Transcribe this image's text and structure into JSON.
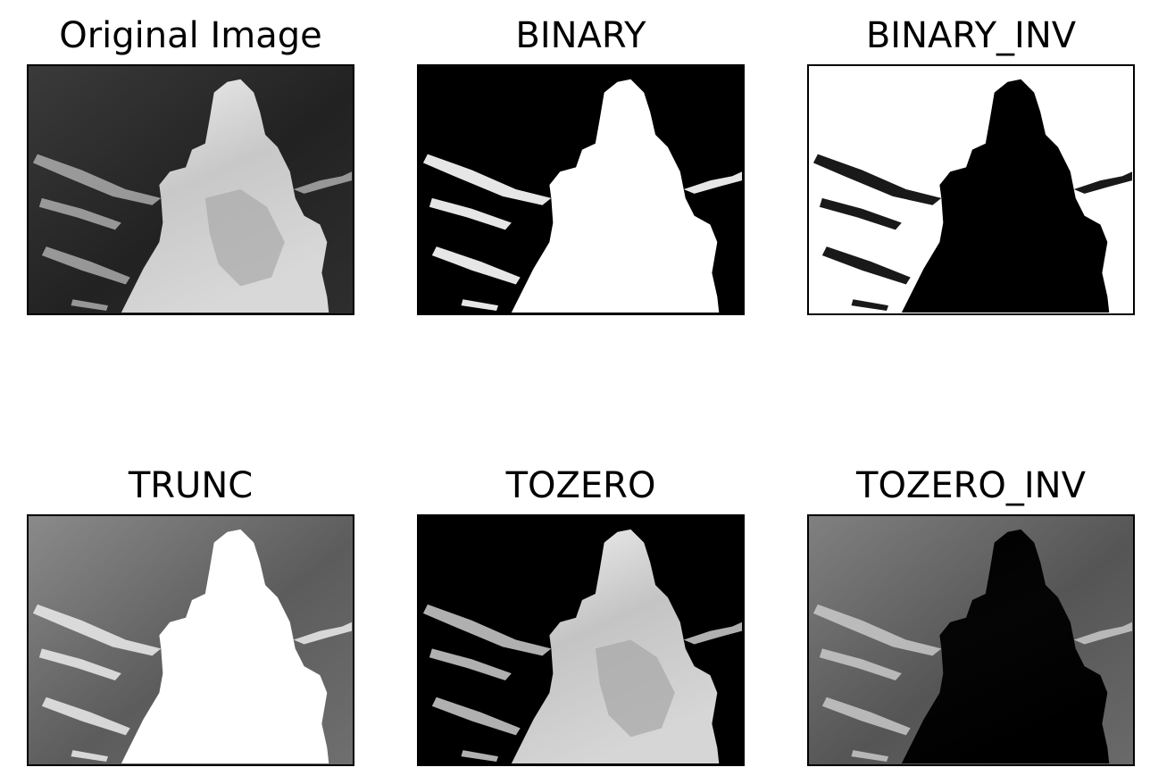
{
  "figure": {
    "panels": [
      {
        "title": "Original Image",
        "variant": "original"
      },
      {
        "title": "BINARY",
        "variant": "binary"
      },
      {
        "title": "BINARY_INV",
        "variant": "binary_inv"
      },
      {
        "title": "TRUNC",
        "variant": "trunc"
      },
      {
        "title": "TOZERO",
        "variant": "tozero"
      },
      {
        "title": "TOZERO_INV",
        "variant": "tozero_inv"
      }
    ]
  }
}
